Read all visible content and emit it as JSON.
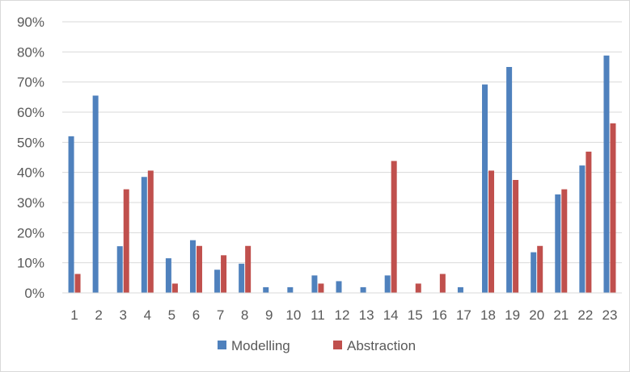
{
  "chart_data": {
    "type": "bar",
    "title": "",
    "xlabel": "",
    "ylabel": "",
    "categories": [
      "1",
      "2",
      "3",
      "4",
      "5",
      "6",
      "7",
      "8",
      "9",
      "10",
      "11",
      "12",
      "13",
      "14",
      "15",
      "16",
      "17",
      "18",
      "19",
      "20",
      "21",
      "22",
      "23"
    ],
    "series": [
      {
        "name": "Modelling",
        "color": "#4f81bd",
        "values": [
          52,
          65.5,
          15.5,
          38.5,
          11.5,
          17.5,
          7.7,
          9.7,
          1.9,
          1.9,
          5.8,
          3.9,
          1.9,
          5.8,
          0,
          0,
          1.9,
          69.2,
          75,
          13.5,
          32.7,
          42.3,
          78.8
        ]
      },
      {
        "name": "Abstraction",
        "color": "#c0504d",
        "values": [
          6.3,
          0,
          34.4,
          40.6,
          3.1,
          15.6,
          12.5,
          15.6,
          0,
          0,
          3.1,
          0,
          0,
          43.8,
          3.1,
          6.3,
          0,
          40.6,
          37.5,
          15.6,
          34.4,
          46.9,
          56.3
        ]
      }
    ],
    "ylim": [
      0,
      90
    ],
    "yticks": [
      "0%",
      "10%",
      "20%",
      "30%",
      "40%",
      "50%",
      "60%",
      "70%",
      "80%",
      "90%"
    ],
    "grid": true,
    "legend_position": "bottom"
  }
}
